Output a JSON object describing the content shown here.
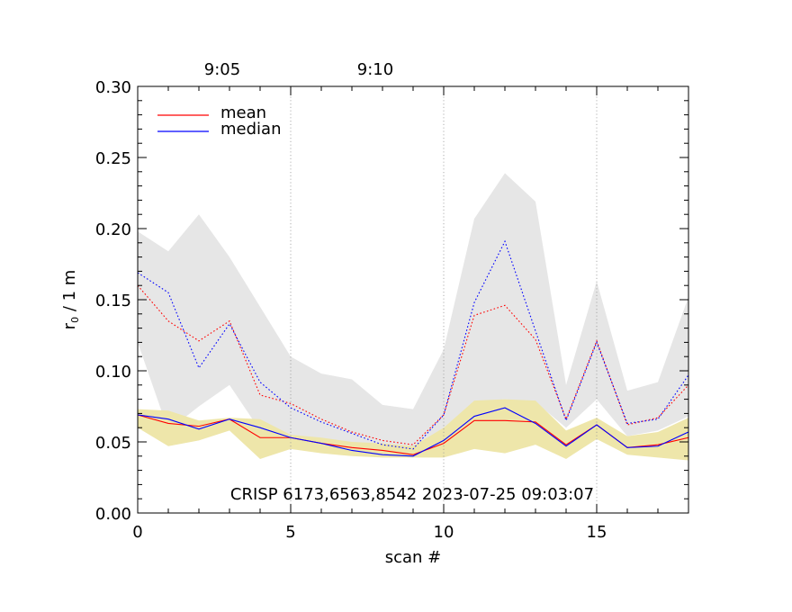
{
  "chart_data": {
    "type": "line",
    "xlabel": "scan #",
    "ylabel": "r",
    "ylabel_sub": "0",
    "ylabel_suffix": " / 1 m",
    "xlim": [
      0,
      18
    ],
    "ylim": [
      0,
      0.3
    ],
    "x_ticks": [
      0,
      5,
      10,
      15
    ],
    "x_tick_labels": [
      "0",
      "5",
      "10",
      "15"
    ],
    "y_ticks": [
      0,
      0.05,
      0.1,
      0.15,
      0.2,
      0.25,
      0.3
    ],
    "y_tick_labels": [
      "0.00",
      "0.05",
      "0.10",
      "0.15",
      "0.20",
      "0.25",
      "0.30"
    ],
    "time_ticks": [
      {
        "x": 5,
        "label": "9:05"
      },
      {
        "x": 10,
        "label": "9:10"
      }
    ],
    "vlines": [
      5,
      10,
      15
    ],
    "annotation": "CRISP 6173,6563,8542 2023-07-25 09:03:07",
    "legend": [
      {
        "name": "mean",
        "color": "#ff0000"
      },
      {
        "name": "median",
        "color": "#0000ff"
      }
    ],
    "x": [
      0,
      1,
      2,
      3,
      4,
      5,
      6,
      7,
      8,
      9,
      10,
      11,
      12,
      13,
      14,
      15,
      16,
      17,
      18
    ],
    "bands": [
      {
        "name": "upper-range",
        "color": "#e6e6e6",
        "low": [
          0.12,
          0.058,
          0.075,
          0.09,
          0.058,
          0.052,
          0.05,
          0.048,
          0.045,
          0.042,
          0.06,
          0.078,
          0.08,
          0.078,
          0.06,
          0.08,
          0.054,
          0.058,
          0.068
        ],
        "high": [
          0.198,
          0.184,
          0.21,
          0.18,
          0.145,
          0.11,
          0.098,
          0.094,
          0.076,
          0.073,
          0.115,
          0.207,
          0.239,
          0.219,
          0.09,
          0.163,
          0.086,
          0.092,
          0.152
        ]
      },
      {
        "name": "lower-range",
        "color": "#eee6aa",
        "low": [
          0.06,
          0.047,
          0.051,
          0.058,
          0.038,
          0.045,
          0.042,
          0.04,
          0.039,
          0.039,
          0.039,
          0.045,
          0.042,
          0.048,
          0.038,
          0.052,
          0.041,
          0.039,
          0.037
        ],
        "high": [
          0.073,
          0.072,
          0.065,
          0.067,
          0.066,
          0.055,
          0.053,
          0.05,
          0.049,
          0.047,
          0.06,
          0.079,
          0.08,
          0.079,
          0.058,
          0.067,
          0.054,
          0.057,
          0.067
        ]
      }
    ],
    "series": [
      {
        "name": "mean (upper)",
        "color": "#ff0000",
        "dash": true,
        "values": [
          0.16,
          0.135,
          0.121,
          0.135,
          0.083,
          0.077,
          0.066,
          0.057,
          0.051,
          0.048,
          0.069,
          0.139,
          0.146,
          0.122,
          0.066,
          0.121,
          0.062,
          0.067,
          0.09
        ]
      },
      {
        "name": "median (upper)",
        "color": "#0000ff",
        "dash": true,
        "values": [
          0.169,
          0.155,
          0.102,
          0.133,
          0.092,
          0.074,
          0.064,
          0.056,
          0.048,
          0.045,
          0.069,
          0.148,
          0.191,
          0.128,
          0.065,
          0.12,
          0.063,
          0.066,
          0.097
        ]
      },
      {
        "name": "mean",
        "color": "#ff0000",
        "dash": false,
        "values": [
          0.069,
          0.063,
          0.061,
          0.066,
          0.053,
          0.053,
          0.049,
          0.046,
          0.044,
          0.041,
          0.049,
          0.065,
          0.065,
          0.064,
          0.048,
          0.062,
          0.046,
          0.048,
          0.053
        ]
      },
      {
        "name": "median",
        "color": "#0000ff",
        "dash": false,
        "values": [
          0.069,
          0.066,
          0.059,
          0.066,
          0.06,
          0.053,
          0.049,
          0.044,
          0.041,
          0.04,
          0.051,
          0.068,
          0.074,
          0.063,
          0.047,
          0.062,
          0.046,
          0.047,
          0.057
        ]
      }
    ]
  }
}
